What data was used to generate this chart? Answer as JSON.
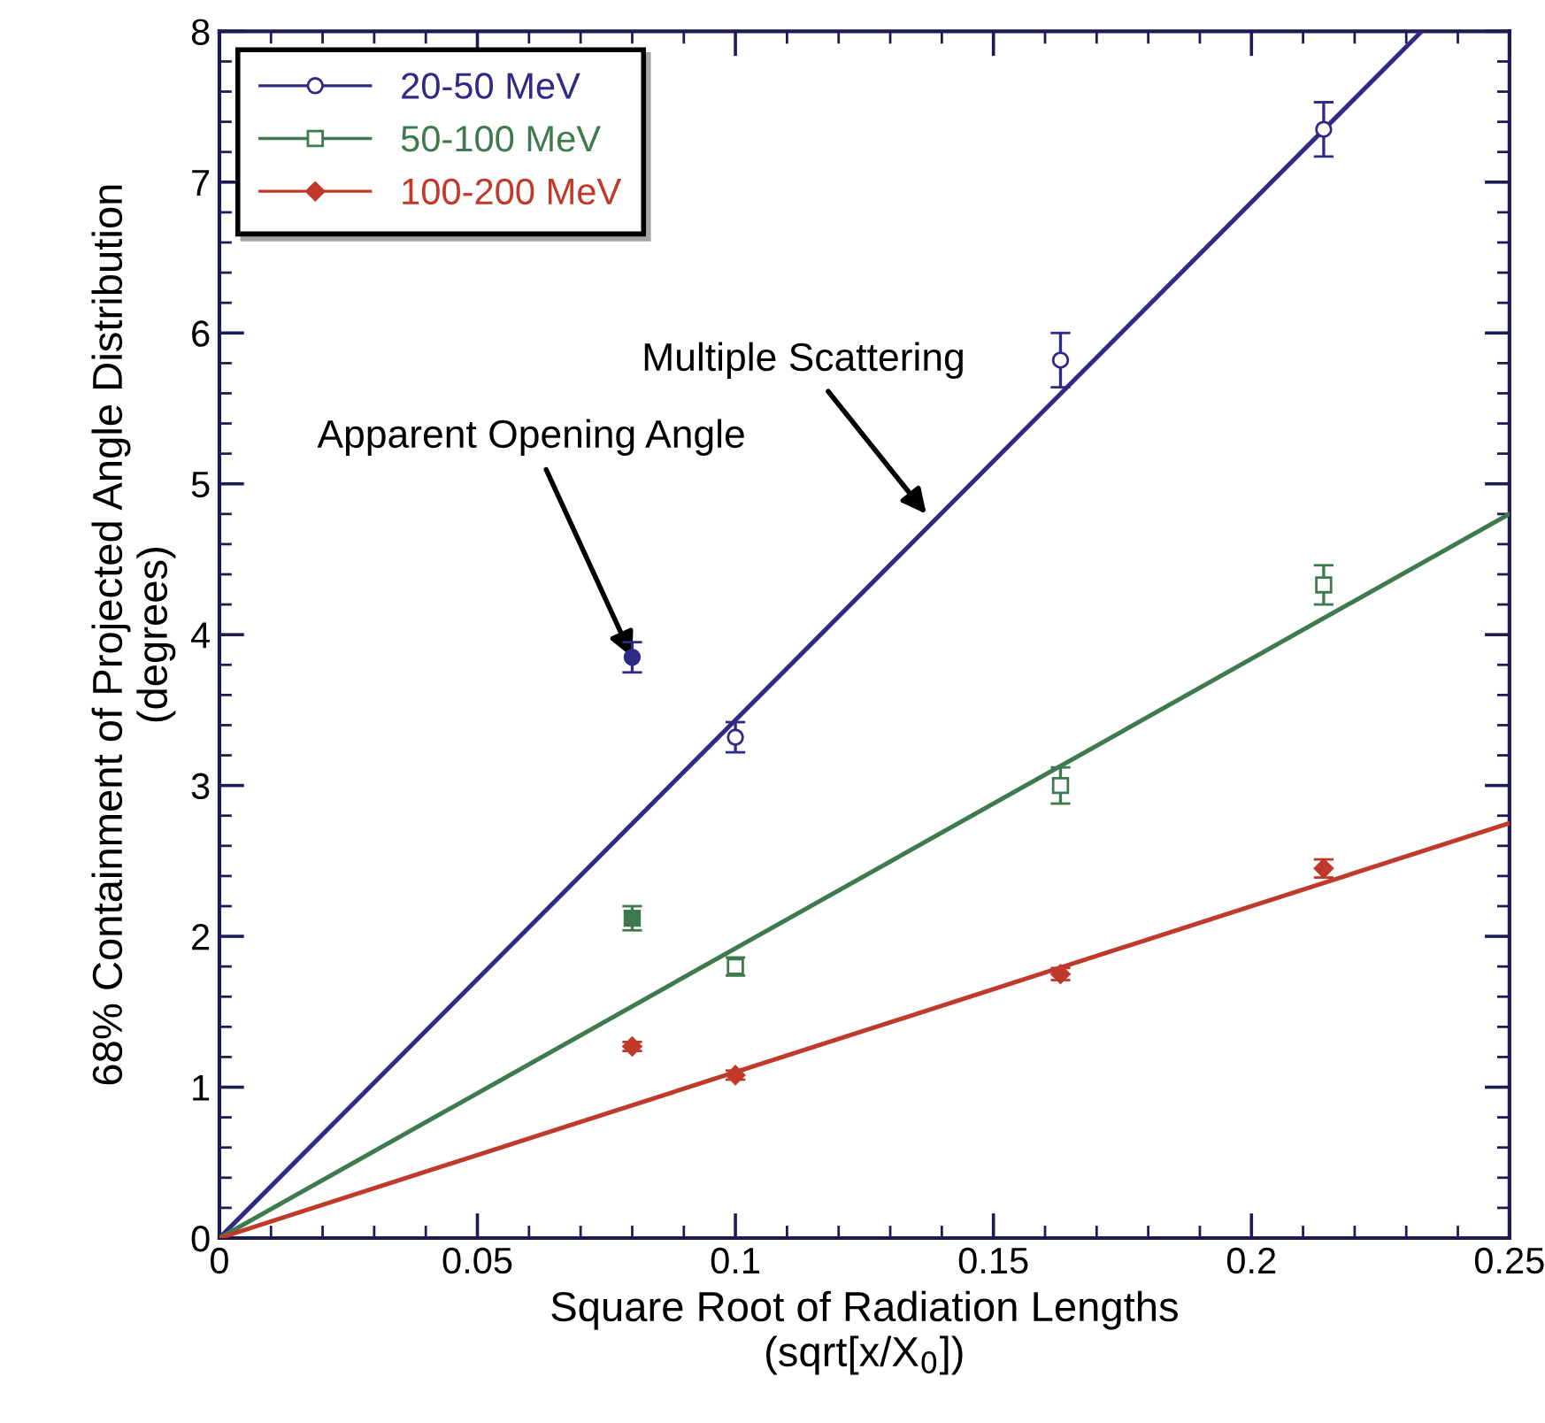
{
  "chart_data": {
    "type": "scatter",
    "xlabel": "Square Root of Radiation Lengths\n(sqrt[x/X$_{0}$])",
    "ylabel": "68% Containment of Projected Angle Distribution\n(degrees)",
    "xlim": [
      0,
      0.25
    ],
    "xticks": [
      0,
      0.05,
      0.1,
      0.15,
      0.2,
      0.25
    ],
    "ylim": [
      0,
      8
    ],
    "yticks": [
      0,
      1,
      2,
      3,
      4,
      5,
      6,
      7,
      8
    ],
    "grid": false,
    "legend": "top left",
    "series": [
      {
        "name": "20-50 MeV",
        "color": "#2e2a85",
        "marker": "circle",
        "x": [
          0.1,
          0.163,
          0.214
        ],
        "values": [
          3.32,
          5.82,
          7.35
        ],
        "errors": [
          0.1,
          0.18,
          0.18
        ]
      },
      {
        "name": "50-100 MeV",
        "color": "#3f7a4f",
        "marker": "square",
        "x": [
          0.1,
          0.163,
          0.214
        ],
        "values": [
          1.8,
          3.0,
          4.33
        ],
        "errors": [
          0.06,
          0.12,
          0.13
        ]
      },
      {
        "name": "100-200 MeV",
        "color": "#c0392b",
        "marker": "diamond",
        "x": [
          0.1,
          0.163,
          0.214
        ],
        "values": [
          1.08,
          1.75,
          2.45
        ],
        "errors": [
          0.03,
          0.04,
          0.06
        ]
      },
      {
        "color": "#2e2a85",
        "marker": "circle",
        "x": [
          0.08
        ],
        "values": [
          3.85
        ],
        "errors": [
          0.1
        ]
      },
      {
        "color": "#3f7a4f",
        "marker": "square",
        "x": [
          0.08
        ],
        "values": [
          2.12
        ],
        "errors": [
          0.08
        ]
      },
      {
        "color": "#c0392b",
        "marker": "diamond",
        "x": [
          0.08
        ],
        "values": [
          1.27
        ],
        "errors": [
          0.03
        ]
      },
      {
        "type": "line",
        "color": "#2e2a85",
        "x": [
          0,
          0.233
        ],
        "values": [
          0,
          8
        ]
      },
      {
        "type": "line",
        "color": "#3f7a4f",
        "x": [
          0,
          0.25
        ],
        "values": [
          0,
          4.8
        ]
      },
      {
        "type": "line",
        "color": "#c0392b",
        "x": [
          0,
          0.25
        ],
        "values": [
          0,
          2.75
        ]
      }
    ],
    "annotations": [
      {
        "text": "Apparent Opening Angle",
        "x": 0.08,
        "y": 3.85
      },
      {
        "text": "Multiple Scattering",
        "x": 0.137,
        "y": 4.8
      }
    ]
  }
}
